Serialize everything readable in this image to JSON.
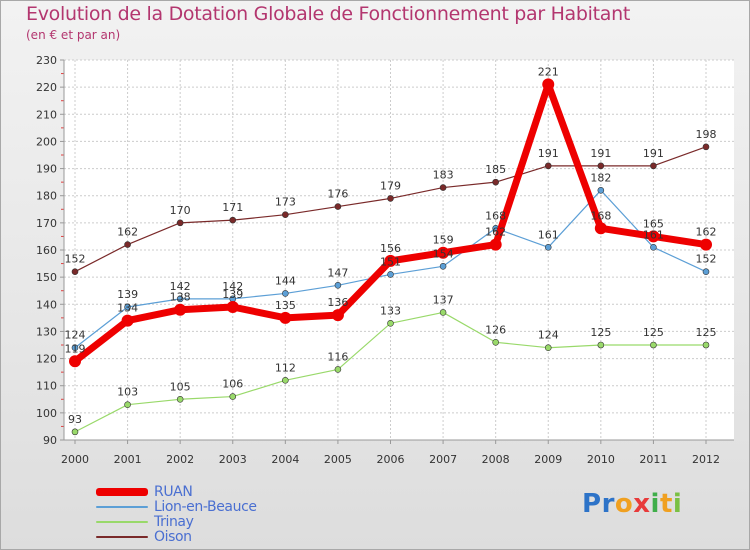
{
  "chart_data": {
    "type": "line",
    "title": "Evolution de la Dotation Globale de Fonctionnement par Habitant",
    "subtitle": "(en € et par an)",
    "x": [
      "2000",
      "2001",
      "2002",
      "2003",
      "2004",
      "2005",
      "2006",
      "2007",
      "2008",
      "2009",
      "2010",
      "2011",
      "2012"
    ],
    "ylim": [
      90,
      230
    ],
    "yticks": [
      90,
      100,
      110,
      120,
      130,
      140,
      150,
      160,
      170,
      180,
      190,
      200,
      210,
      220,
      230
    ],
    "series": [
      {
        "name": "Oison",
        "color": "#7a2a2a",
        "values": [
          152,
          162,
          170,
          171,
          173,
          176,
          179,
          183,
          185,
          191,
          191,
          191,
          198
        ]
      },
      {
        "name": "Lion-en-Beauce",
        "color": "#5c9fd6",
        "values": [
          124,
          139,
          142,
          142,
          144,
          147,
          151,
          154,
          168,
          161,
          182,
          161,
          152
        ]
      },
      {
        "name": "Trinay",
        "color": "#99d96a",
        "values": [
          93,
          103,
          105,
          106,
          112,
          116,
          133,
          137,
          126,
          124,
          125,
          125,
          125
        ]
      },
      {
        "name": "RUAN",
        "color": "#ee0000",
        "values": [
          119,
          134,
          138,
          139,
          135,
          136,
          156,
          159,
          162,
          221,
          168,
          165,
          162
        ]
      }
    ],
    "legend": [
      "RUAN",
      "Lion-en-Beauce",
      "Trinay",
      "Oison"
    ]
  },
  "logo": {
    "letters": [
      {
        "ch": "P",
        "color": "#2d73c8"
      },
      {
        "ch": "r",
        "color": "#2d73c8"
      },
      {
        "ch": "o",
        "color": "#f0a020"
      },
      {
        "ch": "x",
        "color": "#e83a3a"
      },
      {
        "ch": "i",
        "color": "#3fae4a"
      },
      {
        "ch": "t",
        "color": "#f0a020"
      },
      {
        "ch": "i",
        "color": "#7ac043"
      }
    ]
  }
}
